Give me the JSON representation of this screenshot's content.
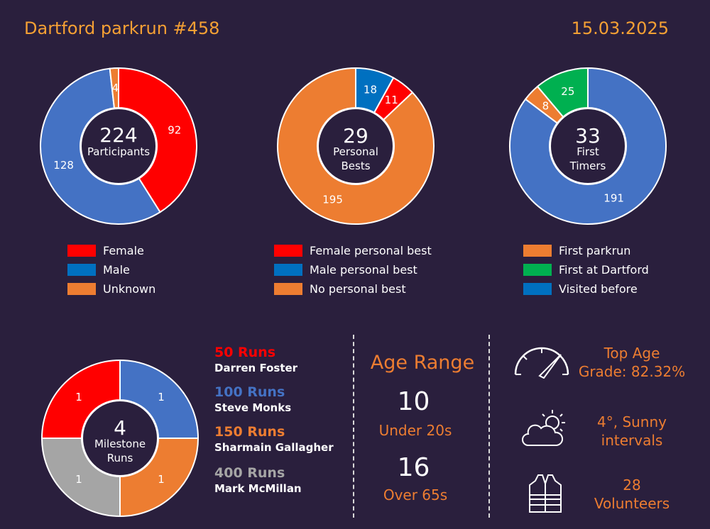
{
  "header": {
    "title": "Dartford parkrun #458",
    "date": "15.03.2025"
  },
  "chart_data": [
    {
      "type": "pie",
      "center_value": "224",
      "center_label": [
        "Participants"
      ],
      "slices": [
        {
          "label": "Female",
          "value": 92,
          "color": "#ff0000"
        },
        {
          "label": "Male",
          "value": 128,
          "color": "#4472c4"
        },
        {
          "label": "Unknown",
          "value": 4,
          "color": "#ed7d31"
        }
      ],
      "legend": [
        {
          "label": "Female",
          "color": "#ff0000"
        },
        {
          "label": "Male",
          "color": "#0070c0"
        },
        {
          "label": "Unknown",
          "color": "#ed7d31"
        }
      ]
    },
    {
      "type": "pie",
      "center_value": "29",
      "center_label": [
        "Personal",
        "Bests"
      ],
      "slices": [
        {
          "label": "Male personal best",
          "value": 18,
          "color": "#0070c0"
        },
        {
          "label": "Female personal best",
          "value": 11,
          "color": "#ff0000"
        },
        {
          "label": "No personal best",
          "value": 195,
          "color": "#ed7d31"
        }
      ],
      "legend": [
        {
          "label": "Female personal best",
          "color": "#ff0000"
        },
        {
          "label": "Male personal best",
          "color": "#0070c0"
        },
        {
          "label": "No personal best",
          "color": "#ed7d31"
        }
      ]
    },
    {
      "type": "pie",
      "center_value": "33",
      "center_label": [
        "First",
        "Timers"
      ],
      "slices": [
        {
          "label": "Visited before",
          "value": 191,
          "color": "#4472c4"
        },
        {
          "label": "First parkrun",
          "value": 8,
          "color": "#ed7d31"
        },
        {
          "label": "First at Dartford",
          "value": 25,
          "color": "#00b050"
        }
      ],
      "legend": [
        {
          "label": "First parkrun",
          "color": "#ed7d31"
        },
        {
          "label": "First at Dartford",
          "color": "#00b050"
        },
        {
          "label": "Visited before",
          "color": "#0070c0"
        }
      ]
    },
    {
      "type": "pie",
      "center_value": "4",
      "center_label": [
        "Milestone",
        "Runs"
      ],
      "slices": [
        {
          "label": "100 Runs",
          "value": 1,
          "color": "#4472c4"
        },
        {
          "label": "150 Runs",
          "value": 1,
          "color": "#ed7d31"
        },
        {
          "label": "400 Runs",
          "value": 1,
          "color": "#a5a5a5"
        },
        {
          "label": "50 Runs",
          "value": 1,
          "color": "#ff0000"
        }
      ],
      "legend": []
    }
  ],
  "milestones": [
    {
      "runs": "50 Runs",
      "name": "Darren Foster",
      "color": "#ff0000"
    },
    {
      "runs": "100 Runs",
      "name": "Steve Monks",
      "color": "#4472c4"
    },
    {
      "runs": "150 Runs",
      "name": "Sharmain Gallagher",
      "color": "#ed7d31"
    },
    {
      "runs": "400 Runs",
      "name": "Mark McMillan",
      "color": "#a5a5a5"
    }
  ],
  "age_range": {
    "title": "Age Range",
    "under_value": "10",
    "under_label": "Under 20s",
    "over_value": "16",
    "over_label": "Over 65s"
  },
  "info": {
    "age_grade_line1": "Top Age",
    "age_grade_line2": "Grade: 82.32%",
    "weather_line1": "4°, Sunny",
    "weather_line2": "intervals",
    "volunteers_line1": "28",
    "volunteers_line2": "Volunteers",
    "icons": [
      "gauge-icon",
      "weather-icon",
      "vest-icon"
    ]
  }
}
